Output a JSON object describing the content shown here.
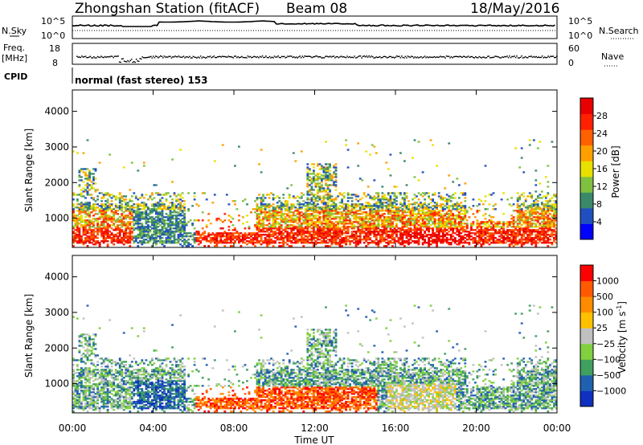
{
  "header": {
    "station": "Zhongshan Station (fitACF)",
    "beam": "Beam 08",
    "date": "18/May/2016"
  },
  "top_panels": {
    "nsky_label": "N.Sky",
    "nsearch_label": "N.Search",
    "nsky_ticks": [
      "10^5",
      "10^0"
    ],
    "nsearch_ticks": [
      "10^5",
      "10^0"
    ],
    "freq_label_line1": "Freq.",
    "freq_label_line2": "[MHz]",
    "freq_ticks": [
      "18",
      "8"
    ],
    "nave_label": "Nave",
    "nave_ticks": [
      "60",
      "0"
    ],
    "cpid_label": "CPID",
    "cpid_text": "normal (fast stereo) 153"
  },
  "colors": {
    "power_scale": [
      "#0000ff",
      "#2050c0",
      "#3a8a6a",
      "#80c040",
      "#e8e000",
      "#ffa000",
      "#ff6000",
      "#ff2000",
      "#e80000"
    ],
    "velocity_scale": [
      "#ff0000",
      "#ff5a00",
      "#ff8c00",
      "#ffc000",
      "#c0c0c0",
      "#80d040",
      "#40a060",
      "#2060b0",
      "#1030c0"
    ]
  },
  "chart_data": [
    {
      "type": "heatmap",
      "panel": "power",
      "ylabel": "Slant Range [km]",
      "y_ticks": [
        "1000",
        "2000",
        "3000",
        "4000"
      ],
      "yrange": [
        180,
        4600
      ],
      "x_ticks": [
        "00:00",
        "04:00",
        "08:00",
        "12:00",
        "16:00",
        "20:00",
        "00:00"
      ],
      "xrange_hours": [
        0,
        24
      ],
      "colorbar_label": "Power [dB]",
      "colorbar_ticks": [
        "4",
        "8",
        "12",
        "16",
        "20",
        "24",
        "28"
      ],
      "colorbar_range": [
        0,
        30
      ]
    },
    {
      "type": "heatmap",
      "panel": "velocity",
      "ylabel": "Slant Range [km]",
      "y_ticks": [
        "1000",
        "2000",
        "3000",
        "4000"
      ],
      "yrange": [
        180,
        4600
      ],
      "x_ticks": [
        "00:00",
        "04:00",
        "08:00",
        "12:00",
        "16:00",
        "20:00",
        "00:00"
      ],
      "xrange_hours": [
        0,
        24
      ],
      "xlabel": "Time UT",
      "colorbar_label": "Velocity [m s",
      "colorbar_label_sup": "-1",
      "colorbar_label_end": "]",
      "colorbar_ticks": [
        "1000",
        "500",
        "100",
        "25",
        "−25",
        "−100",
        "−500",
        "−1000"
      ]
    }
  ]
}
